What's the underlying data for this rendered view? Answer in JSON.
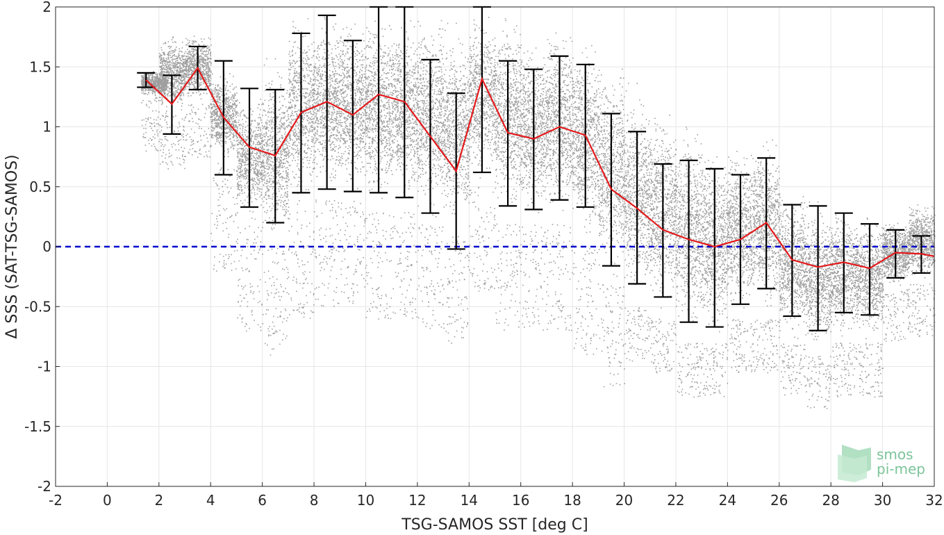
{
  "chart_data": {
    "type": "line",
    "title": "",
    "xlabel": "TSG-SAMOS SST [deg C]",
    "ylabel": "Δ SSS (SAT-TSG-SAMOS)",
    "xlim": [
      -2,
      32
    ],
    "ylim": [
      -2,
      2
    ],
    "xticks": [
      -2,
      0,
      2,
      4,
      6,
      8,
      10,
      12,
      14,
      16,
      18,
      20,
      22,
      24,
      26,
      28,
      30,
      32
    ],
    "xtick_labels": [
      "-2",
      "0",
      "2",
      "4",
      "6",
      "8",
      "10",
      "12",
      "14",
      "16",
      "18",
      "20",
      "22",
      "24",
      "26",
      "28",
      "30",
      "32"
    ],
    "yticks": [
      -2,
      -1.5,
      -1,
      -0.5,
      0,
      0.5,
      1,
      1.5,
      2
    ],
    "ytick_labels": [
      "-2",
      "-1.5",
      "-1",
      "-0.5",
      "0",
      "0.5",
      "1",
      "1.5",
      "2"
    ],
    "grid": true,
    "reference_line": {
      "y": 0,
      "style": "dashed",
      "color": "#0000cc"
    },
    "series": [
      {
        "style": "line",
        "color": "#e41a1c",
        "x": [
          1.5,
          2.5,
          3.5,
          4.5,
          5.5,
          6.5,
          7.5,
          8.5,
          9.5,
          10.5,
          11.5,
          12.5,
          13.5,
          14.5,
          15.5,
          16.5,
          17.5,
          18.5,
          19.5,
          20.5,
          21.5,
          22.5,
          23.5,
          24.5,
          25.5,
          26.5,
          27.5,
          28.5,
          29.5,
          30.5,
          31.5,
          32
        ],
        "y": [
          1.39,
          1.19,
          1.49,
          1.08,
          0.83,
          0.76,
          1.12,
          1.21,
          1.1,
          1.27,
          1.21,
          0.92,
          0.63,
          1.4,
          0.95,
          0.9,
          1.0,
          0.93,
          0.48,
          0.32,
          0.14,
          0.06,
          0.0,
          0.06,
          0.2,
          -0.11,
          -0.17,
          -0.13,
          -0.18,
          -0.05,
          -0.06,
          -0.08
        ]
      },
      {
        "style": "errorbar",
        "color": "#000000",
        "x": [
          1.5,
          2.5,
          3.5,
          4.5,
          5.5,
          6.5,
          7.5,
          8.5,
          9.5,
          10.5,
          11.5,
          12.5,
          13.5,
          14.5,
          15.5,
          16.5,
          17.5,
          18.5,
          19.5,
          20.5,
          21.5,
          22.5,
          23.5,
          24.5,
          25.5,
          26.5,
          27.5,
          28.5,
          29.5,
          30.5,
          31.5
        ],
        "upper": [
          1.45,
          1.43,
          1.67,
          1.55,
          1.32,
          1.31,
          1.78,
          1.93,
          1.72,
          2.0,
          2.0,
          1.56,
          1.28,
          2.0,
          1.55,
          1.48,
          1.59,
          1.52,
          1.11,
          0.96,
          0.69,
          0.72,
          0.65,
          0.6,
          0.74,
          0.35,
          0.34,
          0.28,
          0.19,
          0.14,
          0.09
        ],
        "lower": [
          1.33,
          0.94,
          1.31,
          0.6,
          0.33,
          0.2,
          0.45,
          0.48,
          0.46,
          0.45,
          0.41,
          0.28,
          -0.02,
          0.62,
          0.34,
          0.31,
          0.39,
          0.33,
          -0.16,
          -0.31,
          -0.42,
          -0.63,
          -0.67,
          -0.48,
          -0.35,
          -0.58,
          -0.7,
          -0.55,
          -0.57,
          -0.26,
          -0.22
        ]
      }
    ],
    "scatter_cloud": {
      "color": "#7f7f7f",
      "description_bands": [
        {
          "x": 1.8,
          "ylo": 1.25,
          "yhi": 1.48
        },
        {
          "x": 2.5,
          "ylo": 1.1,
          "yhi": 1.8
        },
        {
          "x": 3.5,
          "ylo": 1.2,
          "yhi": 1.8
        },
        {
          "x": 4.5,
          "ylo": 0.7,
          "yhi": 1.5
        },
        {
          "x": 5.5,
          "ylo": 0.2,
          "yhi": 1.3
        },
        {
          "x": 6.5,
          "ylo": 0.0,
          "yhi": 1.6
        },
        {
          "x": 7.5,
          "ylo": 0.3,
          "yhi": 2.0
        },
        {
          "x": 8.5,
          "ylo": 0.4,
          "yhi": 2.0
        },
        {
          "x": 9.5,
          "ylo": 0.4,
          "yhi": 2.0
        },
        {
          "x": 10.5,
          "ylo": 0.3,
          "yhi": 2.0
        },
        {
          "x": 11.5,
          "ylo": 0.3,
          "yhi": 2.0
        },
        {
          "x": 12.5,
          "ylo": 0.2,
          "yhi": 2.0
        },
        {
          "x": 13.5,
          "ylo": 0.1,
          "yhi": 1.9
        },
        {
          "x": 14.5,
          "ylo": 0.5,
          "yhi": 2.0
        },
        {
          "x": 15.5,
          "ylo": 0.2,
          "yhi": 2.0
        },
        {
          "x": 16.5,
          "ylo": 0.2,
          "yhi": 1.8
        },
        {
          "x": 17.5,
          "ylo": 0.2,
          "yhi": 1.9
        },
        {
          "x": 18.5,
          "ylo": 0.0,
          "yhi": 1.8
        },
        {
          "x": 19.5,
          "ylo": -0.3,
          "yhi": 1.6
        },
        {
          "x": 20.5,
          "ylo": -0.5,
          "yhi": 1.4
        },
        {
          "x": 21.5,
          "ylo": -0.6,
          "yhi": 1.2
        },
        {
          "x": 22.5,
          "ylo": -0.8,
          "yhi": 1.1
        },
        {
          "x": 23.5,
          "ylo": -0.8,
          "yhi": 0.9
        },
        {
          "x": 24.5,
          "ylo": -0.6,
          "yhi": 0.9
        },
        {
          "x": 25.5,
          "ylo": -0.6,
          "yhi": 1.0
        },
        {
          "x": 26.5,
          "ylo": -0.8,
          "yhi": 0.5
        },
        {
          "x": 27.5,
          "ylo": -0.9,
          "yhi": 0.4
        },
        {
          "x": 28.5,
          "ylo": -0.8,
          "yhi": 0.35
        },
        {
          "x": 29.5,
          "ylo": -0.8,
          "yhi": 0.3
        },
        {
          "x": 30.5,
          "ylo": -0.35,
          "yhi": 0.25
        },
        {
          "x": 31.5,
          "ylo": -0.3,
          "yhi": 0.4
        }
      ]
    }
  },
  "logo": {
    "line1": "smos",
    "line2": "pi-mep"
  }
}
